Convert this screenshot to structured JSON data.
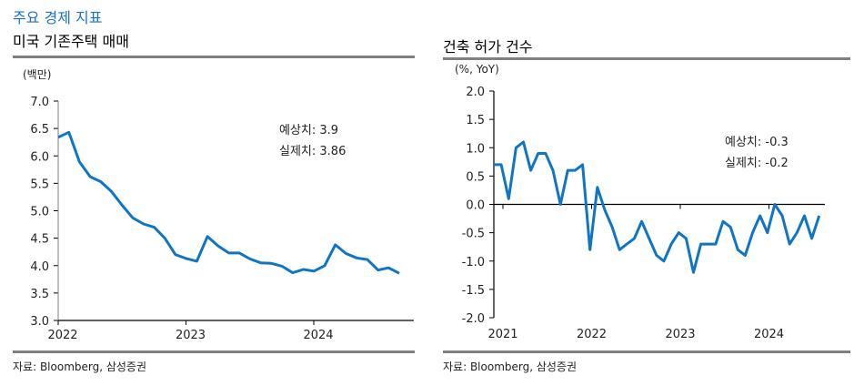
{
  "header": {
    "section_title": "주요 경제 지표"
  },
  "colors": {
    "accent": "#1a73c8",
    "line": "#0f75c4",
    "rule": "#808080"
  },
  "chart_data": [
    {
      "type": "line",
      "title": "미국 기존주택 매매",
      "unit_label": "(백만)",
      "xlabel": "",
      "ylabel": "",
      "ylim": [
        3.0,
        7.0
      ],
      "yticks": [
        "3.0",
        "3.5",
        "4.0",
        "4.5",
        "5.0",
        "5.5",
        "6.0",
        "6.5",
        "7.0"
      ],
      "ytick_values": [
        3.0,
        3.5,
        4.0,
        4.5,
        5.0,
        5.5,
        6.0,
        6.5,
        7.0
      ],
      "xticks": [
        "2022",
        "2023",
        "2024"
      ],
      "x_start": "2022-01",
      "frequency": "monthly",
      "grid": false,
      "series": [
        {
          "name": "미국 기존주택 매매",
          "values": [
            6.34,
            6.43,
            5.89,
            5.62,
            5.53,
            5.35,
            5.1,
            4.87,
            4.76,
            4.7,
            4.5,
            4.2,
            4.13,
            4.08,
            4.53,
            4.36,
            4.23,
            4.23,
            4.12,
            4.05,
            4.04,
            3.99,
            3.87,
            3.93,
            3.9,
            4.0,
            4.38,
            4.22,
            4.14,
            4.11,
            3.92,
            3.96,
            3.86
          ]
        }
      ],
      "annotations": [
        "예상치: 3.9",
        "실제치: 3.86"
      ],
      "source": "자료: Bloomberg, 삼성증권"
    },
    {
      "type": "line",
      "title": "건축 허가 건수",
      "unit_label": "(%, YoY)",
      "xlabel": "",
      "ylabel": "",
      "ylim": [
        -2.0,
        2.0
      ],
      "yticks": [
        "-2.0",
        "-1.5",
        "-1.0",
        "-0.5",
        "0.0",
        "0.5",
        "1.0",
        "1.5",
        "2.0"
      ],
      "ytick_values": [
        -2.0,
        -1.5,
        -1.0,
        -0.5,
        0.0,
        0.5,
        1.0,
        1.5,
        2.0
      ],
      "xticks": [
        "2021",
        "2022",
        "2023",
        "2024"
      ],
      "x_start": "2021-01",
      "frequency": "monthly",
      "grid": false,
      "series": [
        {
          "name": "건축 허가 건수",
          "values": [
            0.7,
            0.7,
            0.1,
            1.0,
            1.1,
            0.6,
            0.9,
            0.9,
            0.6,
            0.0,
            0.6,
            0.6,
            0.7,
            -0.8,
            0.3,
            -0.1,
            -0.4,
            -0.8,
            -0.7,
            -0.6,
            -0.3,
            -0.6,
            -0.9,
            -1.0,
            -0.7,
            -0.5,
            -0.6,
            -1.2,
            -0.7,
            -0.7,
            -0.7,
            -0.3,
            -0.4,
            -0.8,
            -0.9,
            -0.5,
            -0.2,
            -0.5,
            0.0,
            -0.2,
            -0.7,
            -0.5,
            -0.2,
            -0.6,
            -0.2
          ]
        }
      ],
      "annotations": [
        "예상치: -0.3",
        "실제치: -0.2"
      ],
      "source": "자료: Bloomberg, 삼성증권"
    }
  ]
}
